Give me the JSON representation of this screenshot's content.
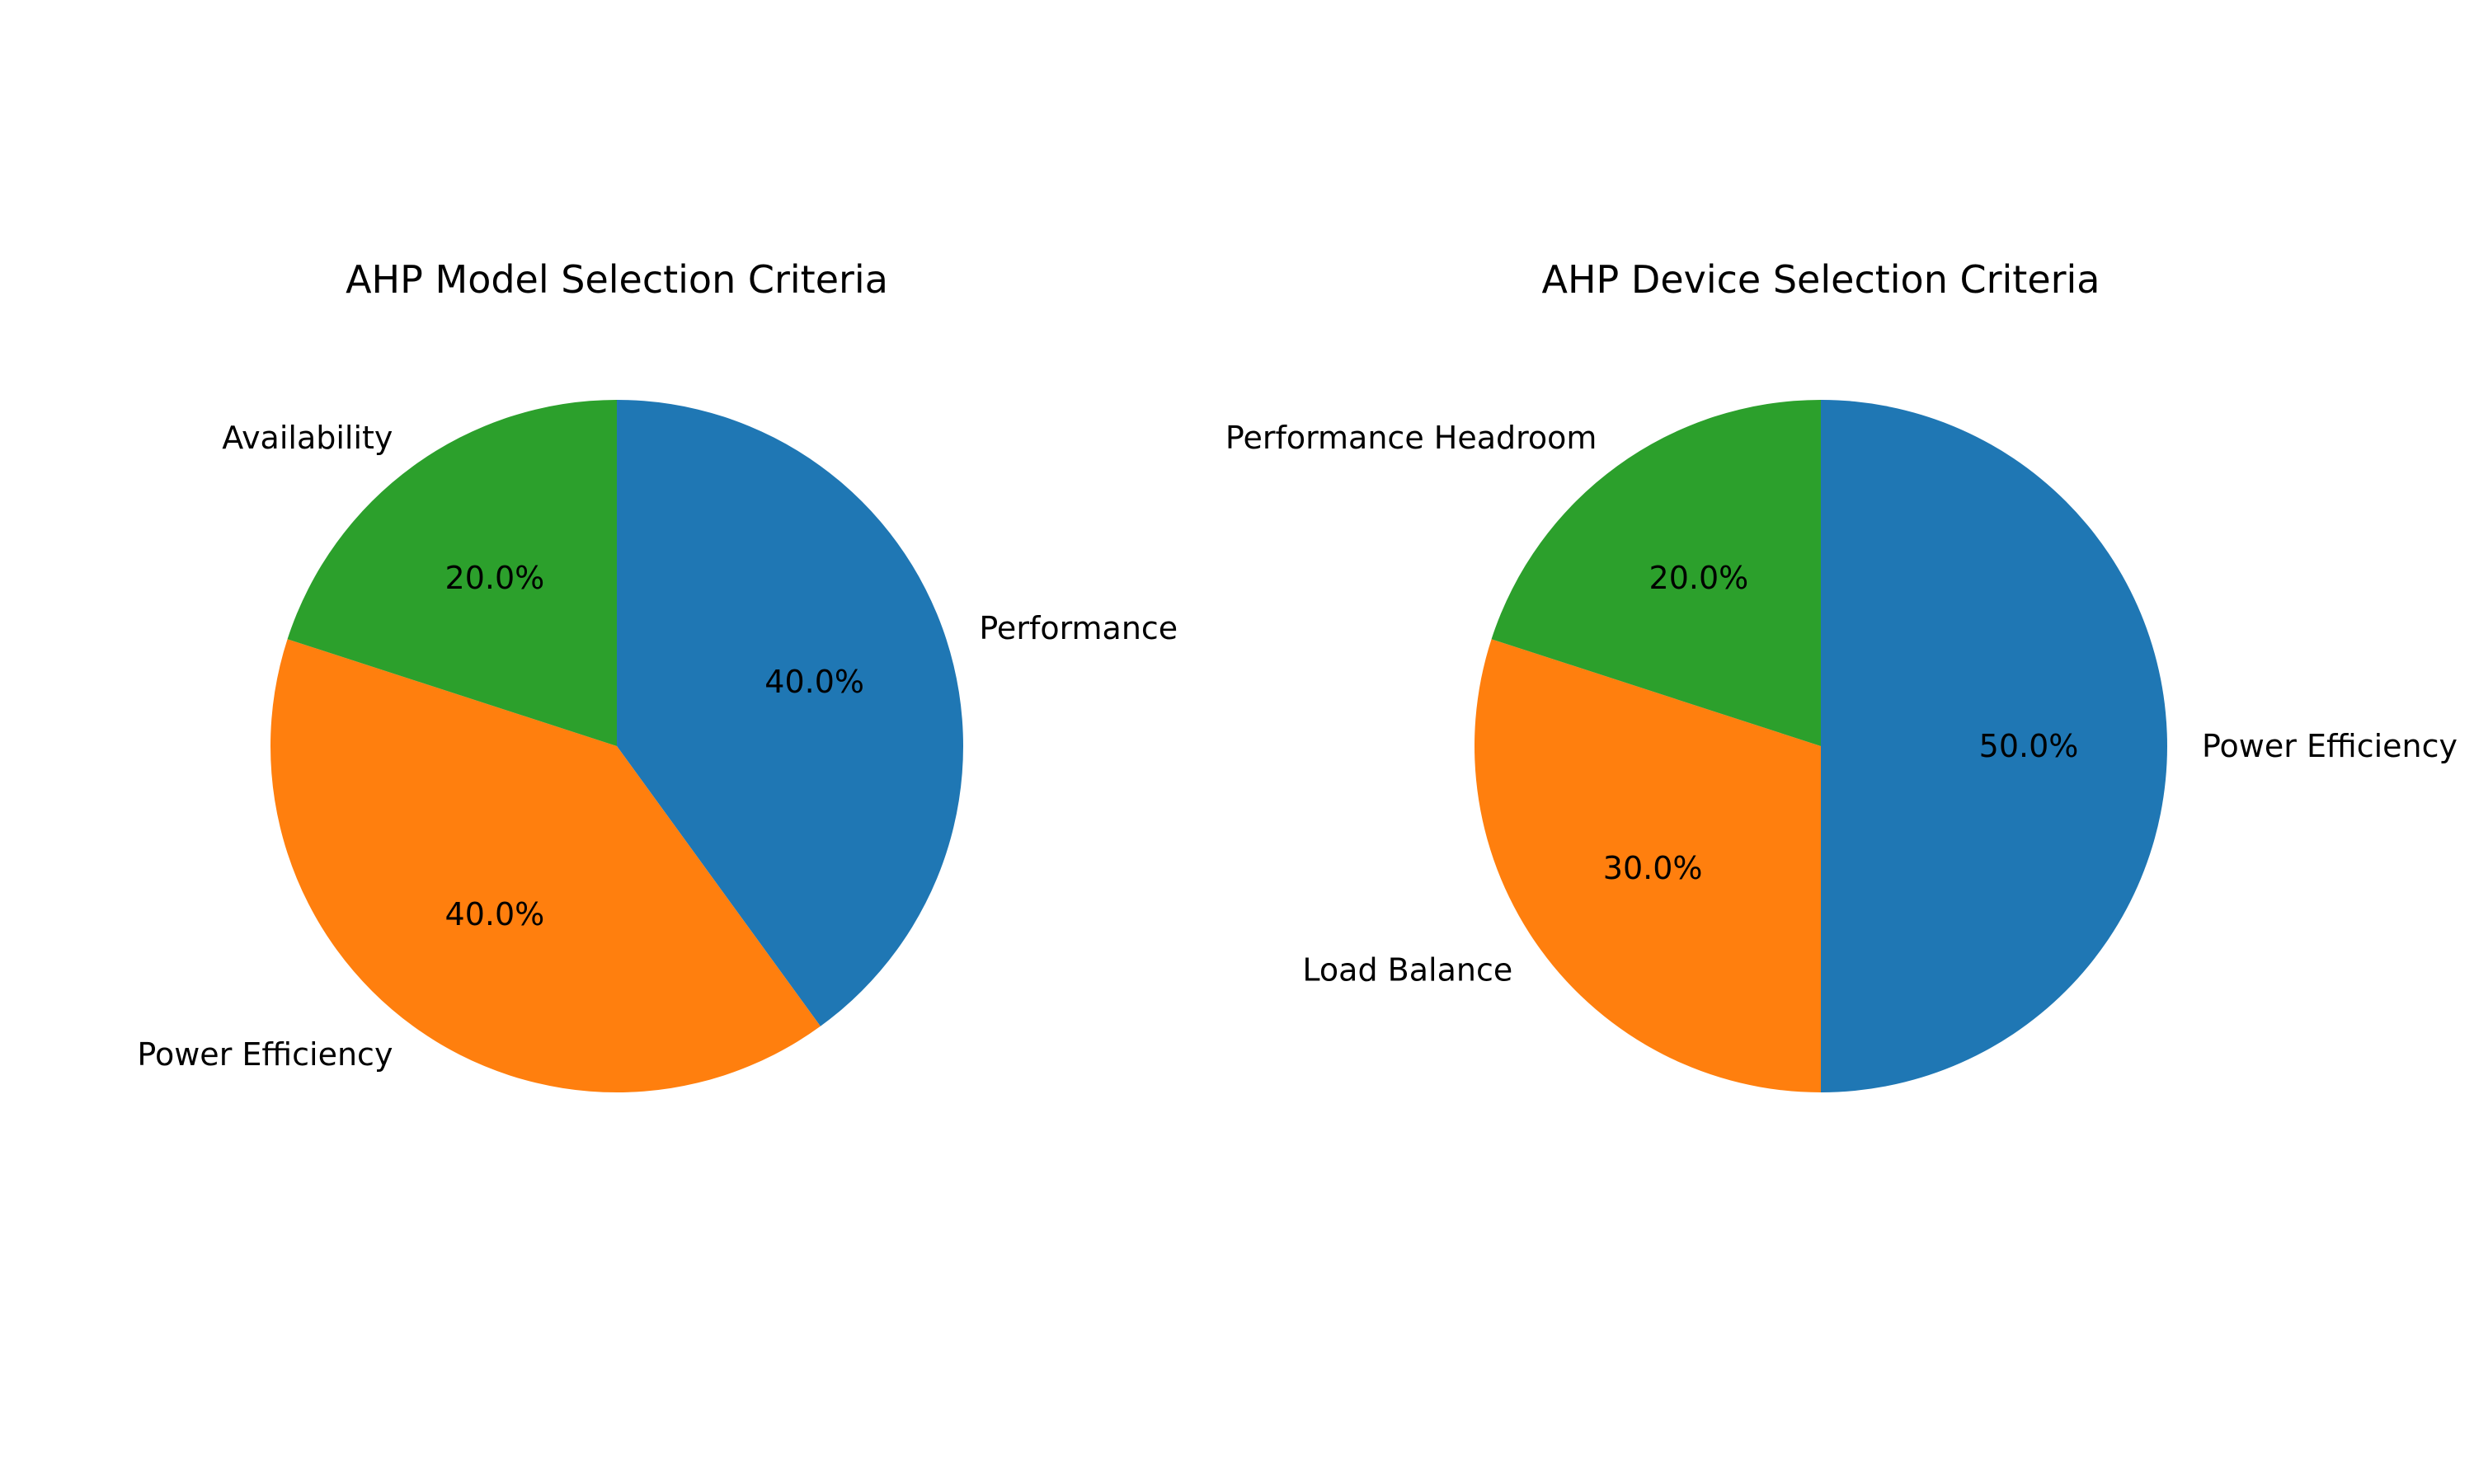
{
  "chart_data": [
    {
      "type": "pie",
      "title": "AHP Model Selection Criteria",
      "start_angle_deg": 90,
      "direction": "clockwise",
      "slices": [
        {
          "label": "Performance",
          "value": 40.0,
          "pct_label": "40.0%",
          "color": "#1f77b4"
        },
        {
          "label": "Power Efficiency",
          "value": 40.0,
          "pct_label": "40.0%",
          "color": "#ff7f0e"
        },
        {
          "label": "Availability",
          "value": 20.0,
          "pct_label": "20.0%",
          "color": "#2ca02c"
        }
      ]
    },
    {
      "type": "pie",
      "title": "AHP Device Selection Criteria",
      "start_angle_deg": 90,
      "direction": "clockwise",
      "slices": [
        {
          "label": "Power Efficiency",
          "value": 50.0,
          "pct_label": "50.0%",
          "color": "#1f77b4"
        },
        {
          "label": "Load Balance",
          "value": 30.0,
          "pct_label": "30.0%",
          "color": "#ff7f0e"
        },
        {
          "label": "Performance Headroom",
          "value": 20.0,
          "pct_label": "20.0%",
          "color": "#2ca02c"
        }
      ]
    }
  ]
}
